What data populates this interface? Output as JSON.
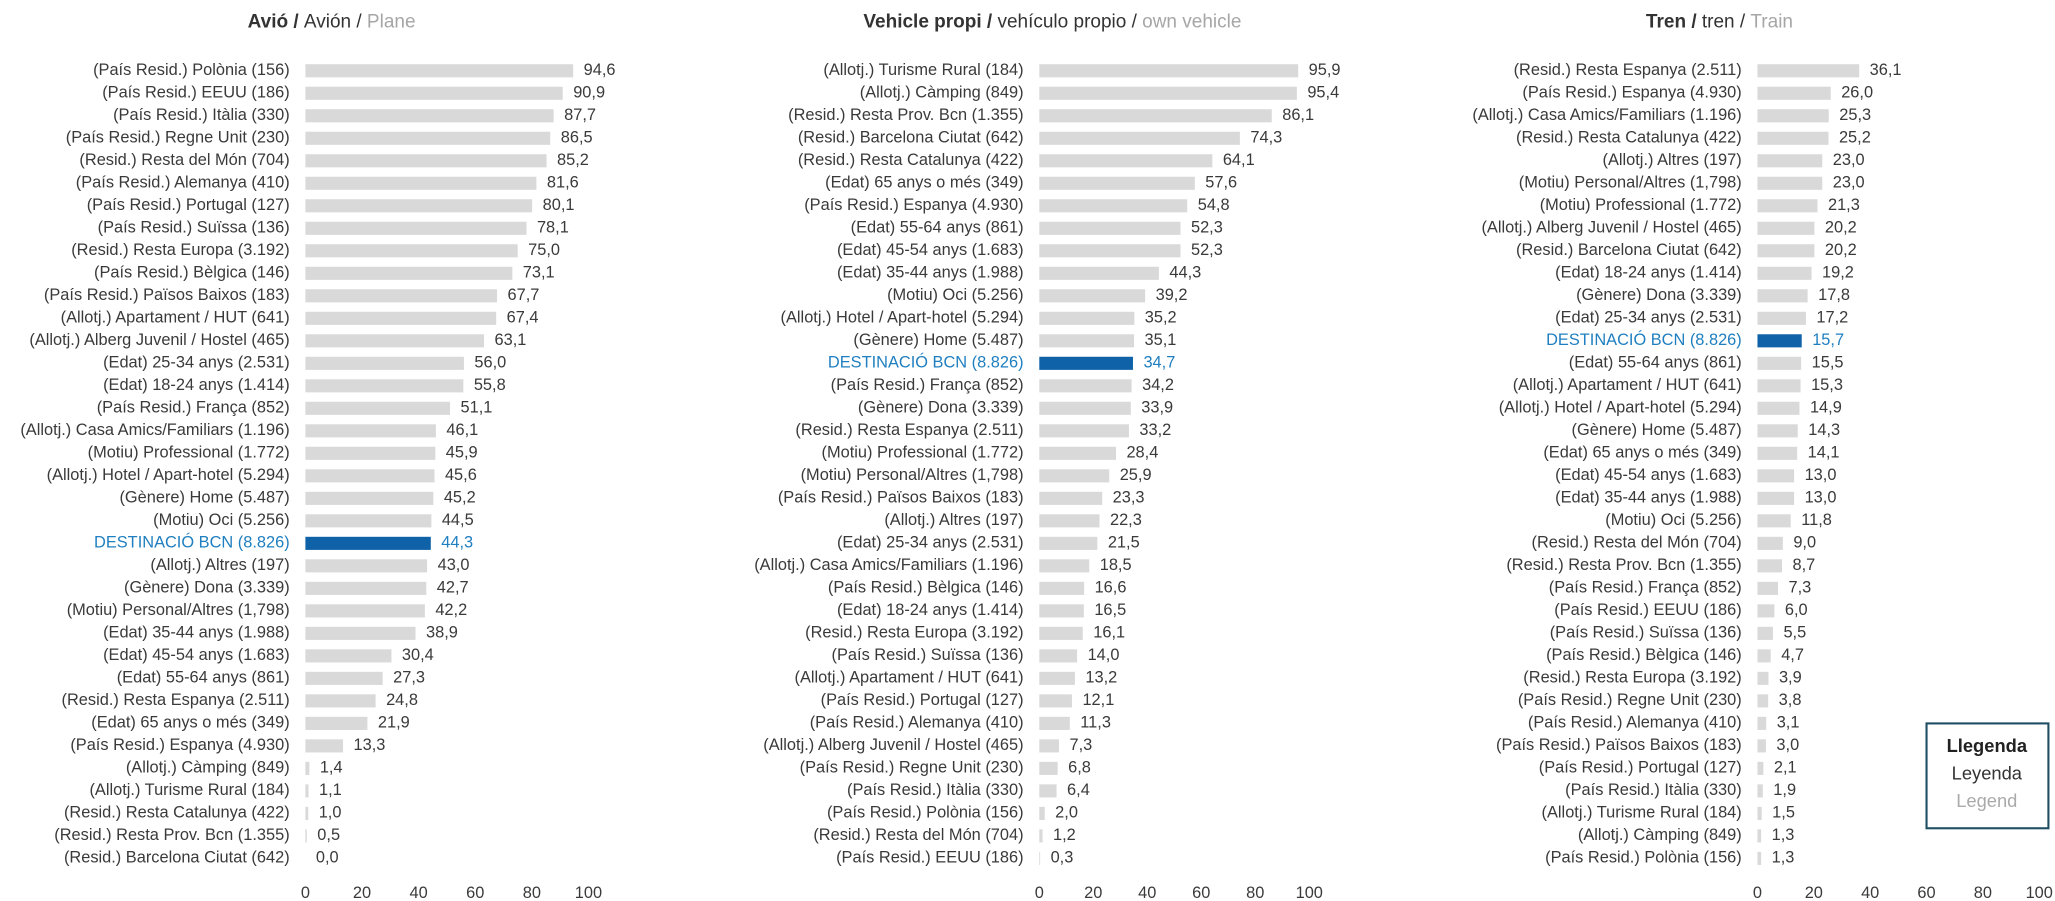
{
  "chart_data": [
    {
      "type": "bar",
      "title": [
        "Avió /",
        "Avión /",
        "Plane"
      ],
      "categories": [
        "(País Resid.) Polònia (156)",
        "(País Resid.) EEUU (186)",
        "(País Resid.) Itàlia (330)",
        "(País Resid.) Regne Unit (230)",
        "(Resid.) Resta del Món (704)",
        "(País Resid.) Alemanya (410)",
        "(País Resid.) Portugal (127)",
        "(País Resid.) Suïssa (136)",
        "(Resid.) Resta Europa (3.192)",
        "(País Resid.) Bèlgica (146)",
        "(País Resid.) Països Baixos (183)",
        "(Allotj.) Apartament / HUT (641)",
        "(Allotj.) Alberg Juvenil / Hostel (465)",
        "(Edat) 25-34 anys  (2.531)",
        "(Edat) 18-24 anys (1.414)",
        "(País Resid.) França (852)",
        "(Allotj.) Casa Amics/Familiars (1.196)",
        "(Motiu) Professional (1.772)",
        "(Allotj.) Hotel / Apart-hotel (5.294)",
        "(Gènere) Home (5.487)",
        "(Motiu) Oci (5.256)",
        "DESTINACIÓ BCN (8.826)",
        "(Allotj.) Altres (197)",
        "(Gènere) Dona (3.339)",
        "(Motiu) Personal/Altres (1,798)",
        "(Edat) 35-44 anys (1.988)",
        "(Edat) 45-54 anys (1.683)",
        "(Edat) 55-64 anys (861)",
        "(Resid.) Resta Espanya (2.511)",
        "(Edat) 65 anys o més (349)",
        "(País Resid.) Espanya (4.930)",
        "(Allotj.) Càmping (849)",
        "(Allotj.) Turisme Rural (184)",
        "(Resid.) Resta Catalunya (422)",
        "(Resid.) Resta Prov. Bcn (1.355)",
        "(Resid.) Barcelona Ciutat (642)"
      ],
      "values": [
        94.6,
        90.9,
        87.7,
        86.5,
        85.2,
        81.6,
        80.1,
        78.1,
        75.0,
        73.1,
        67.7,
        67.4,
        63.1,
        56.0,
        55.8,
        51.1,
        46.1,
        45.9,
        45.6,
        45.2,
        44.5,
        44.3,
        43.0,
        42.7,
        42.2,
        38.9,
        30.4,
        27.3,
        24.8,
        21.9,
        13.3,
        1.4,
        1.1,
        1.0,
        0.5,
        0.0
      ],
      "value_labels": [
        "94,6",
        "90,9",
        "87,7",
        "86,5",
        "85,2",
        "81,6",
        "80,1",
        "78,1",
        "75,0",
        "73,1",
        "67,7",
        "67,4",
        "63,1",
        "56,0",
        "55,8",
        "51,1",
        "46,1",
        "45,9",
        "45,6",
        "45,2",
        "44,5",
        "44,3",
        "43,0",
        "42,7",
        "42,2",
        "38,9",
        "30,4",
        "27,3",
        "24,8",
        "21,9",
        "13,3",
        "1,4",
        "1,1",
        "1,0",
        "0,5",
        "0,0"
      ],
      "color": "#d9d9d9",
      "highlight": {
        "index": 21,
        "color": "#0f62a8",
        "text_color": "#1f7fc0"
      },
      "xlim": [
        0,
        100
      ],
      "xticks": [
        0,
        20,
        40,
        60,
        80,
        100
      ],
      "grid": false
    },
    {
      "type": "bar",
      "title": [
        "Vehicle propi /",
        "vehículo propio /",
        "own vehicle"
      ],
      "categories": [
        "(Allotj.) Turisme Rural (184)",
        "(Allotj.) Càmping (849)",
        "(Resid.) Resta Prov. Bcn (1.355)",
        "(Resid.) Barcelona Ciutat (642)",
        "(Resid.) Resta Catalunya (422)",
        "(Edat) 65 anys o més (349)",
        "(País Resid.) Espanya (4.930)",
        "(Edat) 55-64 anys (861)",
        "(Edat) 45-54 anys (1.683)",
        "(Edat) 35-44 anys (1.988)",
        "(Motiu) Oci (5.256)",
        "(Allotj.) Hotel / Apart-hotel (5.294)",
        "(Gènere) Home (5.487)",
        "DESTINACIÓ BCN (8.826)",
        "(País Resid.) França (852)",
        "(Gènere) Dona (3.339)",
        "(Resid.) Resta Espanya (2.511)",
        "(Motiu) Professional (1.772)",
        "(Motiu) Personal/Altres (1,798)",
        "(País Resid.) Països Baixos (183)",
        "(Allotj.) Altres (197)",
        "(Edat) 25-34 anys  (2.531)",
        "(Allotj.) Casa Amics/Familiars (1.196)",
        "(País Resid.) Bèlgica (146)",
        "(Edat) 18-24 anys (1.414)",
        "(Resid.) Resta Europa (3.192)",
        "(País Resid.) Suïssa (136)",
        "(Allotj.) Apartament / HUT (641)",
        "(País Resid.) Portugal (127)",
        "(País Resid.) Alemanya (410)",
        "(Allotj.) Alberg Juvenil / Hostel (465)",
        "(País Resid.) Regne Unit (230)",
        "(País Resid.) Itàlia (330)",
        "(País Resid.) Polònia (156)",
        "(Resid.) Resta del Món (704)",
        "(País Resid.) EEUU (186)"
      ],
      "values": [
        95.9,
        95.4,
        86.1,
        74.3,
        64.1,
        57.6,
        54.8,
        52.3,
        52.3,
        44.3,
        39.2,
        35.2,
        35.1,
        34.7,
        34.2,
        33.9,
        33.2,
        28.4,
        25.9,
        23.3,
        22.3,
        21.5,
        18.5,
        16.6,
        16.5,
        16.1,
        14.0,
        13.2,
        12.1,
        11.3,
        7.3,
        6.8,
        6.4,
        2.0,
        1.2,
        0.3
      ],
      "value_labels": [
        "95,9",
        "95,4",
        "86,1",
        "74,3",
        "64,1",
        "57,6",
        "54,8",
        "52,3",
        "52,3",
        "44,3",
        "39,2",
        "35,2",
        "35,1",
        "34,7",
        "34,2",
        "33,9",
        "33,2",
        "28,4",
        "25,9",
        "23,3",
        "22,3",
        "21,5",
        "18,5",
        "16,6",
        "16,5",
        "16,1",
        "14,0",
        "13,2",
        "12,1",
        "11,3",
        "7,3",
        "6,8",
        "6,4",
        "2,0",
        "1,2",
        "0,3"
      ],
      "color": "#d9d9d9",
      "highlight": {
        "index": 13,
        "color": "#0f62a8",
        "text_color": "#1f7fc0"
      },
      "xlim": [
        0,
        100
      ],
      "xticks": [
        0,
        20,
        40,
        60,
        80,
        100
      ],
      "grid": false
    },
    {
      "type": "bar",
      "title": [
        "Tren /",
        "tren /",
        "Train"
      ],
      "categories": [
        "(Resid.) Resta Espanya (2.511)",
        "(País Resid.) Espanya (4.930)",
        "(Allotj.) Casa Amics/Familiars (1.196)",
        "(Resid.) Resta Catalunya (422)",
        "(Allotj.) Altres (197)",
        "(Motiu) Personal/Altres (1,798)",
        "(Motiu) Professional (1.772)",
        "(Allotj.) Alberg Juvenil / Hostel (465)",
        "(Resid.) Barcelona Ciutat (642)",
        "(Edat) 18-24 anys (1.414)",
        "(Gènere) Dona (3.339)",
        "(Edat) 25-34 anys  (2.531)",
        "DESTINACIÓ BCN (8.826)",
        "(Edat) 55-64 anys (861)",
        "(Allotj.) Apartament / HUT (641)",
        "(Allotj.) Hotel / Apart-hotel (5.294)",
        "(Gènere) Home (5.487)",
        "(Edat) 65 anys o més (349)",
        "(Edat) 45-54 anys (1.683)",
        "(Edat) 35-44 anys (1.988)",
        "(Motiu) Oci (5.256)",
        "(Resid.) Resta del Món (704)",
        "(Resid.) Resta Prov. Bcn (1.355)",
        "(País Resid.) França (852)",
        "(País Resid.) EEUU (186)",
        "(País Resid.) Suïssa (136)",
        "(País Resid.) Bèlgica (146)",
        "(Resid.) Resta Europa (3.192)",
        "(País Resid.) Regne Unit (230)",
        "(País Resid.) Alemanya (410)",
        "(País Resid.) Països Baixos (183)",
        "(País Resid.) Portugal (127)",
        "(País Resid.) Itàlia (330)",
        "(Allotj.) Turisme Rural (184)",
        "(Allotj.) Càmping (849)",
        "(País Resid.) Polònia (156)"
      ],
      "values": [
        36.1,
        26.0,
        25.3,
        25.2,
        23.0,
        23.0,
        21.3,
        20.2,
        20.2,
        19.2,
        17.8,
        17.2,
        15.7,
        15.5,
        15.3,
        14.9,
        14.3,
        14.1,
        13.0,
        13.0,
        11.8,
        9.0,
        8.7,
        7.3,
        6.0,
        5.5,
        4.7,
        3.9,
        3.8,
        3.1,
        3.0,
        2.1,
        1.9,
        1.5,
        1.3,
        1.3
      ],
      "value_labels": [
        "36,1",
        "26,0",
        "25,3",
        "25,2",
        "23,0",
        "23,0",
        "21,3",
        "20,2",
        "20,2",
        "19,2",
        "17,8",
        "17,2",
        "15,7",
        "15,5",
        "15,3",
        "14,9",
        "14,3",
        "14,1",
        "13,0",
        "13,0",
        "11,8",
        "9,0",
        "8,7",
        "7,3",
        "6,0",
        "5,5",
        "4,7",
        "3,9",
        "3,8",
        "3,1",
        "3,0",
        "2,1",
        "1,9",
        "1,5",
        "1,3",
        "1,3"
      ],
      "color": "#d9d9d9",
      "highlight": {
        "index": 12,
        "color": "#0f62a8",
        "text_color": "#1f7fc0"
      },
      "xlim": [
        0,
        100
      ],
      "xticks": [
        0,
        20,
        40,
        60,
        80,
        100
      ],
      "grid": false
    }
  ],
  "legend_box": [
    "Llegenda",
    "Leyenda",
    "Legend"
  ]
}
